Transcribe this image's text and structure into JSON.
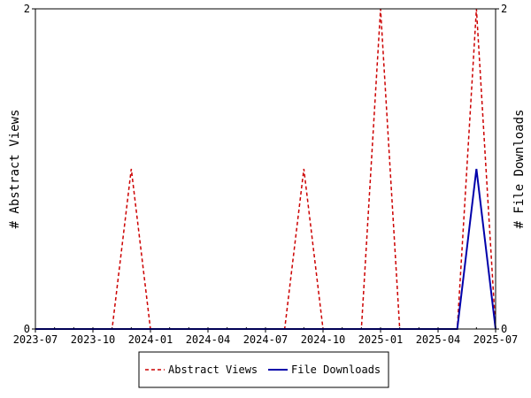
{
  "chart_data": {
    "type": "line",
    "x_type": "date",
    "x_tick_labels": [
      "2023-07",
      "2023-10",
      "2024-01",
      "2024-04",
      "2024-07",
      "2024-10",
      "2025-01",
      "2025-04",
      "2025-07"
    ],
    "xlim": [
      "2023-07",
      "2025-07"
    ],
    "y_left": {
      "label": "# Abstract Views",
      "ylim": [
        0,
        2
      ],
      "tick_labels": [
        "0",
        "2"
      ]
    },
    "y_right": {
      "label": "# File Downloads",
      "ylim": [
        0,
        2
      ],
      "tick_labels": [
        "0",
        "2"
      ]
    },
    "grid": false,
    "legend_position": "bottom-center",
    "series": [
      {
        "name": "Abstract Views",
        "axis": "left",
        "color": "#cc0000",
        "style": "dashed",
        "x": [
          "2023-07",
          "2023-08",
          "2023-09",
          "2023-10",
          "2023-11",
          "2023-12",
          "2024-01",
          "2024-02",
          "2024-03",
          "2024-04",
          "2024-05",
          "2024-06",
          "2024-07",
          "2024-08",
          "2024-09",
          "2024-10",
          "2024-11",
          "2024-12",
          "2025-01",
          "2025-02",
          "2025-03",
          "2025-04",
          "2025-05",
          "2025-06",
          "2025-07"
        ],
        "values": [
          0,
          0,
          0,
          0,
          0,
          1,
          0,
          0,
          0,
          0,
          0,
          0,
          0,
          0,
          1,
          0,
          0,
          0,
          2,
          0,
          0,
          0,
          0,
          2,
          0
        ]
      },
      {
        "name": "File Downloads",
        "axis": "right",
        "color": "#0000aa",
        "style": "solid",
        "x": [
          "2023-07",
          "2023-08",
          "2023-09",
          "2023-10",
          "2023-11",
          "2023-12",
          "2024-01",
          "2024-02",
          "2024-03",
          "2024-04",
          "2024-05",
          "2024-06",
          "2024-07",
          "2024-08",
          "2024-09",
          "2024-10",
          "2024-11",
          "2024-12",
          "2025-01",
          "2025-02",
          "2025-03",
          "2025-04",
          "2025-05",
          "2025-06",
          "2025-07"
        ],
        "values": [
          0,
          0,
          0,
          0,
          0,
          0,
          0,
          0,
          0,
          0,
          0,
          0,
          0,
          0,
          0,
          0,
          0,
          0,
          0,
          0,
          0,
          0,
          0,
          1,
          0
        ]
      }
    ]
  }
}
